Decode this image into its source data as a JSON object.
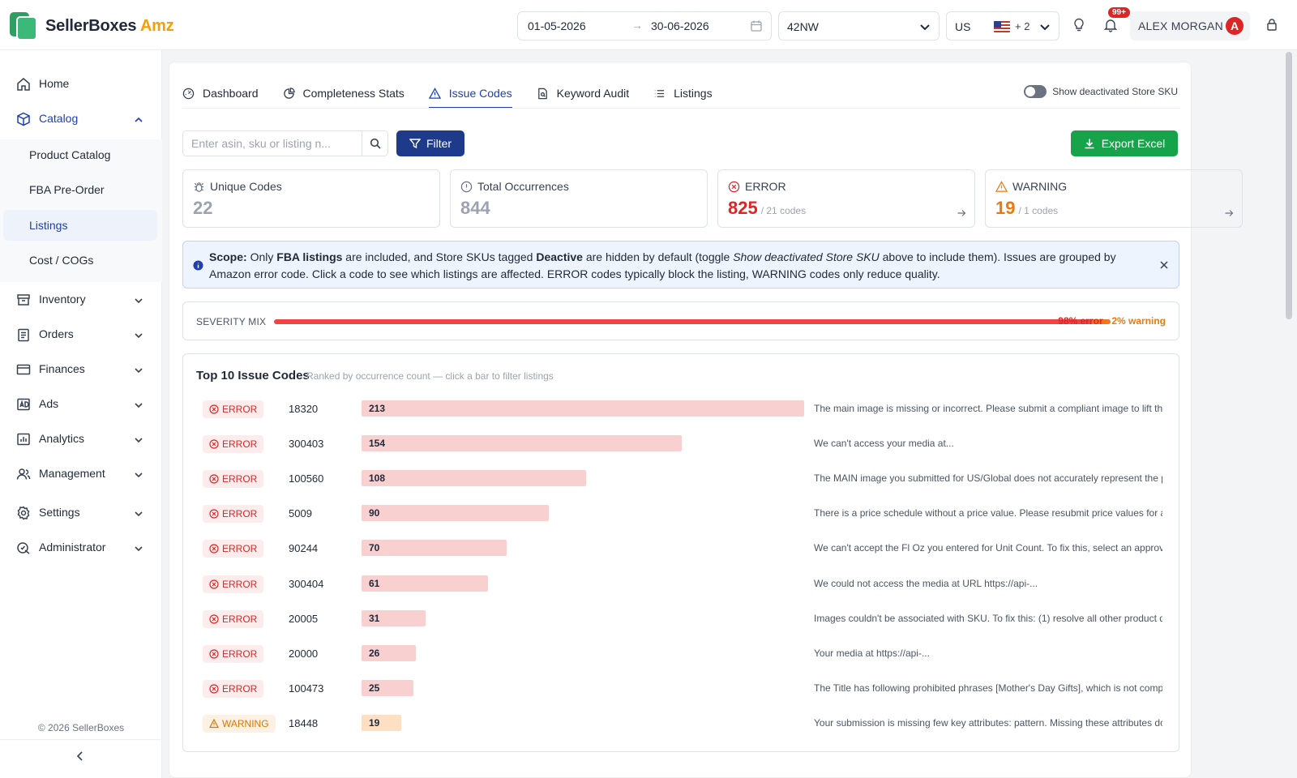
{
  "app": {
    "brand_main": "SellerBoxes",
    "brand_accent": "Amz"
  },
  "header": {
    "date_from": "01-05-2026",
    "date_to": "30-06-2026",
    "date_sep": "→",
    "store": "42NW",
    "country": "US",
    "extra_countries": "+ 2",
    "notification_badge": "99+",
    "user_name": "ALEX MORGAN",
    "user_initial": "A"
  },
  "sidebar": {
    "items": [
      {
        "label": "Home",
        "icon": "home-icon"
      },
      {
        "label": "Catalog",
        "icon": "box-icon"
      },
      {
        "label": "Inventory",
        "icon": "archive-icon"
      },
      {
        "label": "Orders",
        "icon": "clipboard-icon"
      },
      {
        "label": "Finances",
        "icon": "card-icon"
      },
      {
        "label": "Ads",
        "icon": "ad-icon"
      },
      {
        "label": "Analytics",
        "icon": "chart-icon"
      },
      {
        "label": "Management",
        "icon": "users-icon"
      },
      {
        "label": "Settings",
        "icon": "gear-icon"
      },
      {
        "label": "Administrator",
        "icon": "shield-icon"
      }
    ],
    "catalog_sub": [
      "Product Catalog",
      "FBA Pre-Order",
      "Listings",
      "Cost / COGs"
    ],
    "selected_sub": "Listings",
    "copyright": "© 2026 SellerBoxes"
  },
  "tabs": [
    {
      "label": "Dashboard",
      "icon": "gauge-icon"
    },
    {
      "label": "Completeness Stats",
      "icon": "pie-icon"
    },
    {
      "label": "Issue Codes",
      "icon": "warning-icon"
    },
    {
      "label": "Keyword Audit",
      "icon": "doc-search-icon"
    },
    {
      "label": "Listings",
      "icon": "list-icon"
    }
  ],
  "active_tab": "Issue Codes",
  "toggle_label": "Show deactivated Store SKU",
  "search": {
    "placeholder": "Enter asin, sku or listing n..."
  },
  "buttons": {
    "filter": "Filter",
    "export": "Export Excel"
  },
  "stats": {
    "unique": {
      "title": "Unique Codes",
      "value": "22"
    },
    "total": {
      "title": "Total Occurrences",
      "value": "844"
    },
    "error": {
      "title": "ERROR",
      "value": "825",
      "sub": "/ 21 codes"
    },
    "warning": {
      "title": "WARNING",
      "value": "19",
      "sub": "/ 1 codes"
    }
  },
  "alert": {
    "scope_label": "Scope:",
    "t1": " Only ",
    "b1": "FBA listings",
    "t2": " are included, and Store SKUs tagged ",
    "b2": "Deactive",
    "t3": " are hidden by default (toggle ",
    "i1": "Show deactivated Store SKU",
    "t4": " above to include them). Issues are grouped by Amazon error code. Click a code to see which listings are affected. ERROR codes typically block the listing, WARNING codes only reduce quality."
  },
  "severity": {
    "label": "SEVERITY MIX",
    "error_pct": "98% error",
    "sep": " · ",
    "warning_pct": "2% warning",
    "error_fraction": 0.977
  },
  "top_codes": {
    "title": "Top 10 Issue Codes",
    "subtitle": "Ranked by occurrence count — click a bar to filter listings",
    "max": 213,
    "rows": [
      {
        "severity": "ERROR",
        "code": "18320",
        "count": 213,
        "desc": "The main image is missing or incorrect. Please submit a compliant image to lift the..."
      },
      {
        "severity": "ERROR",
        "code": "300403",
        "count": 154,
        "desc": "We can't access your media at..."
      },
      {
        "severity": "ERROR",
        "code": "100560",
        "count": 108,
        "desc": "The MAIN image you submitted for US/Global does not accurately represent the product..."
      },
      {
        "severity": "ERROR",
        "code": "5009",
        "count": 90,
        "desc": "There is a price schedule without a price value. Please resubmit price values for all price..."
      },
      {
        "severity": "ERROR",
        "code": "90244",
        "count": 70,
        "desc": "We can't accept the Fl Oz you entered for Unit Count. To fix this, select an approved val..."
      },
      {
        "severity": "ERROR",
        "code": "300404",
        "count": 61,
        "desc": "We could not access the media at URL https://api-..."
      },
      {
        "severity": "ERROR",
        "code": "20005",
        "count": 31,
        "desc": "Images couldn't be associated with SKU. To fix this: (1) resolve all other product data..."
      },
      {
        "severity": "ERROR",
        "code": "20000",
        "count": 26,
        "desc": "Your media at https://api-..."
      },
      {
        "severity": "ERROR",
        "code": "100473",
        "count": 25,
        "desc": "The Title has following prohibited phrases [Mother's Day Gifts], which is not compliant..."
      },
      {
        "severity": "WARNING",
        "code": "18448",
        "count": 19,
        "desc": "Your submission is missing few key attributes: pattern. Missing these attributes do not..."
      }
    ]
  },
  "colors": {
    "primary": "#1e3a8a",
    "accent_blue": "#1e40af",
    "error": "#dc2626",
    "warning": "#ea7a0c",
    "success": "#16a34a",
    "brand_accent": "#f59e0b"
  }
}
